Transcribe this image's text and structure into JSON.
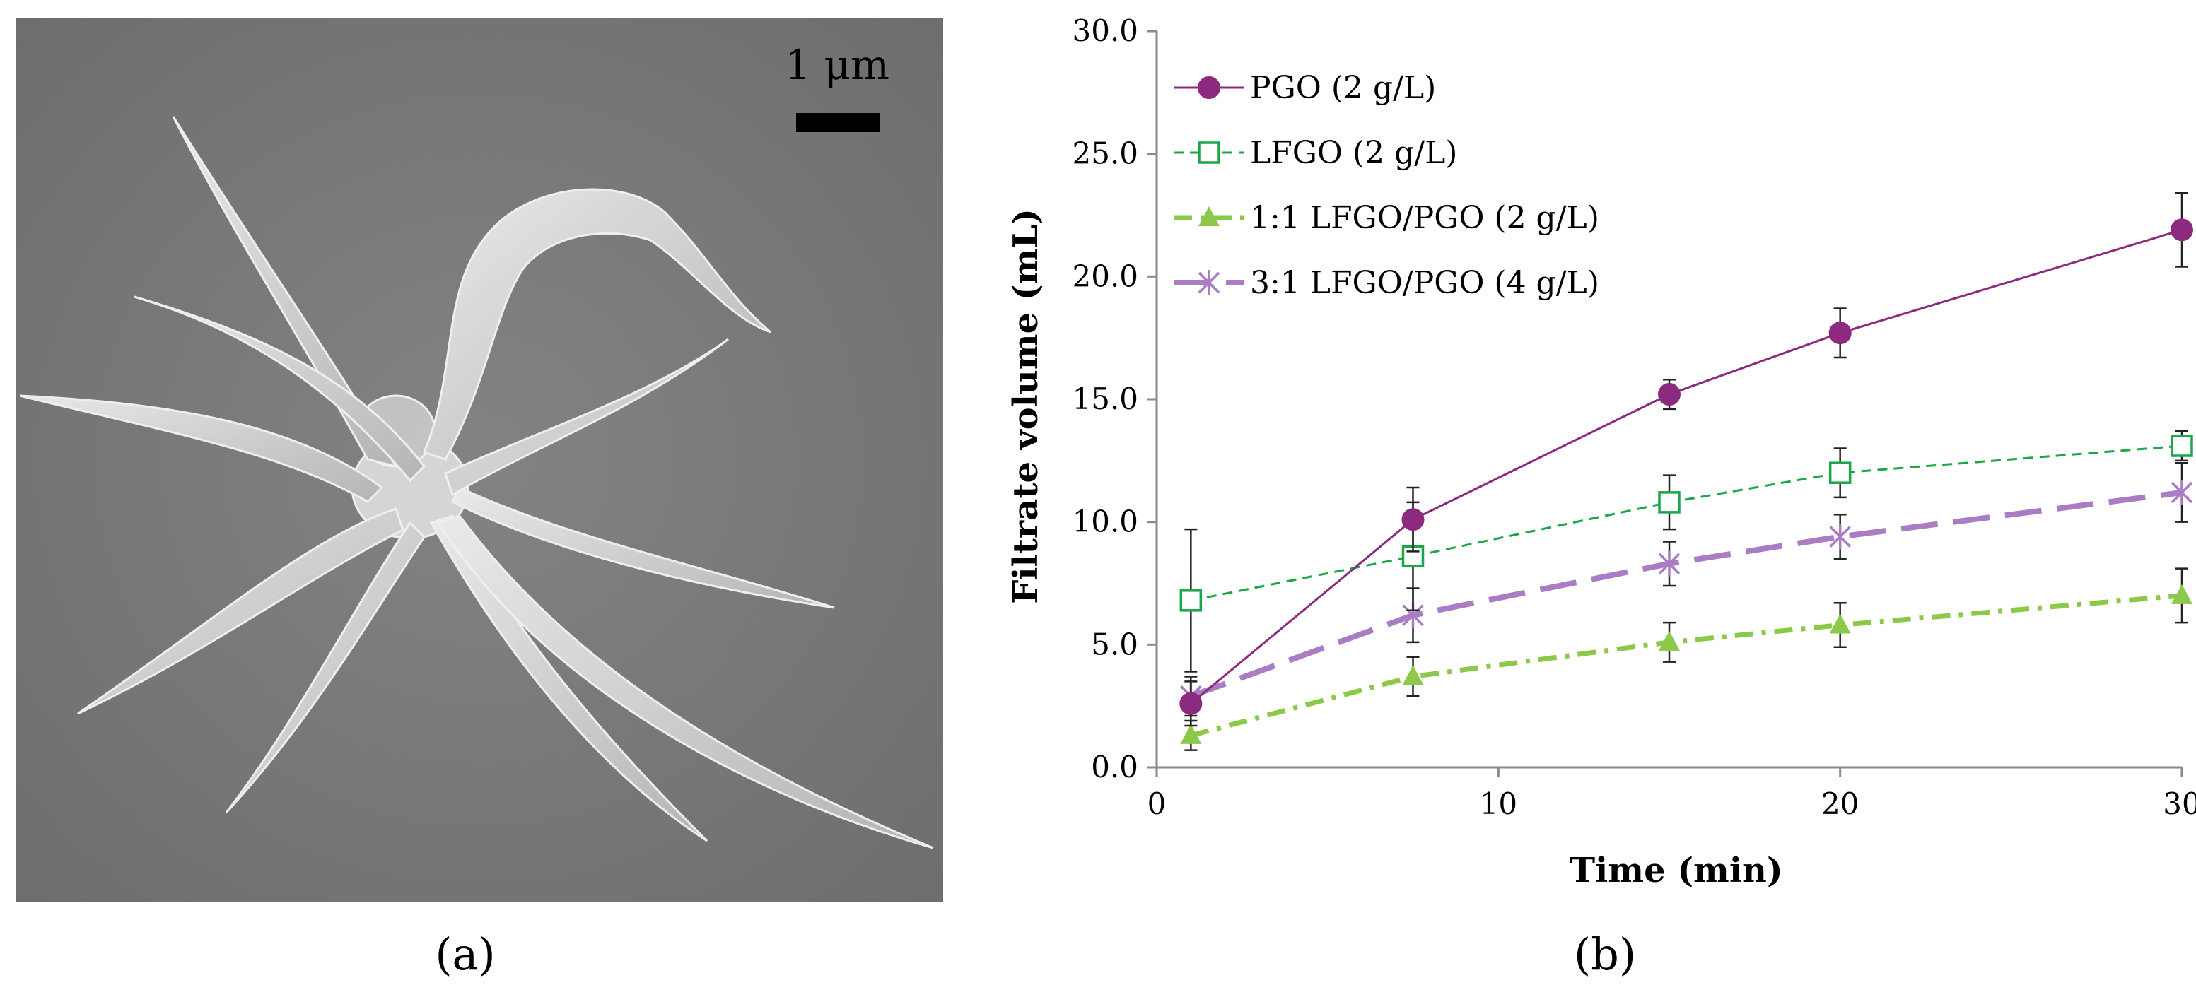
{
  "panels": {
    "a": {
      "label": "(a)",
      "scale_bar_text": "1 μm"
    },
    "b": {
      "label": "(b)"
    }
  },
  "colors": {
    "pgo": "#8b2a7e",
    "lfgo": "#1aa64a",
    "mix11": "#8cc94a",
    "mix31": "#a97cc4",
    "axis": "#8a8a8a",
    "errorbar": "#222222",
    "sem_background": "#7a7a7a",
    "sem_structure": "#e6e6e6"
  },
  "chart_data": {
    "type": "line",
    "title": "",
    "xlabel": "Time (min)",
    "ylabel": "Filtrate volume (mL)",
    "xlim": [
      0,
      30
    ],
    "ylim": [
      0,
      30
    ],
    "xticks": [
      0,
      10,
      20,
      30
    ],
    "xtick_labels": [
      "0",
      "10",
      "20",
      "30"
    ],
    "yticks": [
      0,
      5,
      10,
      15,
      20,
      25,
      30
    ],
    "ytick_labels": [
      "0.0",
      "5.0",
      "10.0",
      "15.0",
      "20.0",
      "25.0",
      "30.0"
    ],
    "grid": false,
    "legend_position": "top-left",
    "x": [
      1,
      7.5,
      15,
      20,
      30
    ],
    "series": [
      {
        "name": "PGO (2 g/L)",
        "key": "pgo",
        "marker": "circle",
        "dash": "solid",
        "values": [
          2.6,
          10.1,
          15.2,
          17.7,
          21.9
        ],
        "errors": [
          0.9,
          1.3,
          0.6,
          1.0,
          1.5
        ]
      },
      {
        "name": "LFGO (2 g/L)",
        "key": "lfgo",
        "marker": "open-square",
        "dash": "dashed",
        "values": [
          6.8,
          8.6,
          10.8,
          12.0,
          13.1
        ],
        "errors": [
          2.9,
          2.2,
          1.1,
          1.0,
          0.6
        ]
      },
      {
        "name": "1:1 LFGO/PGO (2 g/L)",
        "key": "mix11",
        "marker": "triangle",
        "dash": "dash-dot",
        "values": [
          1.3,
          3.7,
          5.1,
          5.8,
          7.0
        ],
        "errors": [
          0.6,
          0.8,
          0.8,
          0.9,
          1.1
        ]
      },
      {
        "name": "3:1 LFGO/PGO (4 g/L)",
        "key": "mix31",
        "marker": "star",
        "dash": "long-dash",
        "values": [
          2.9,
          6.2,
          8.3,
          9.4,
          11.2
        ],
        "errors": [
          0.8,
          1.1,
          0.9,
          0.9,
          1.2
        ]
      }
    ]
  }
}
